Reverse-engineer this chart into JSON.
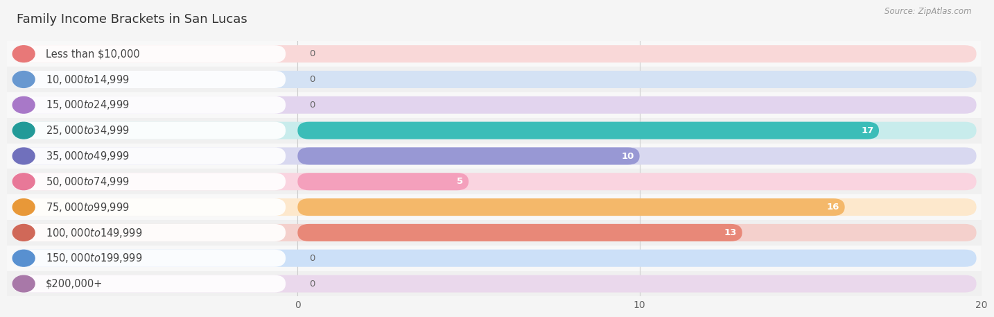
{
  "title": "Family Income Brackets in San Lucas",
  "source": "Source: ZipAtlas.com",
  "categories": [
    "Less than $10,000",
    "$10,000 to $14,999",
    "$15,000 to $24,999",
    "$25,000 to $34,999",
    "$35,000 to $49,999",
    "$50,000 to $74,999",
    "$75,000 to $99,999",
    "$100,000 to $149,999",
    "$150,000 to $199,999",
    "$200,000+"
  ],
  "values": [
    0,
    0,
    0,
    17,
    10,
    5,
    16,
    13,
    0,
    0
  ],
  "bar_colors": [
    "#F2AAAA",
    "#A8C0E8",
    "#C8AADC",
    "#3BBDB8",
    "#9898D4",
    "#F4A0BC",
    "#F4B86A",
    "#E88878",
    "#88B4E8",
    "#C8A8CC"
  ],
  "bar_bg_colors": [
    "#F9D8D8",
    "#D4E2F4",
    "#E2D4EE",
    "#C8ECEC",
    "#D8D8F0",
    "#FAD4E0",
    "#FDE8CC",
    "#F4D0CC",
    "#CCE0F8",
    "#EAD8EC"
  ],
  "dot_colors": [
    "#E87878",
    "#6898D0",
    "#A878C8",
    "#229A98",
    "#7070BC",
    "#E87898",
    "#E89838",
    "#D06858",
    "#5890D0",
    "#A878A8"
  ],
  "row_colors": [
    "#f8f8f8",
    "#f0f0f0"
  ],
  "xlim": [
    0,
    20
  ],
  "xticks": [
    0,
    10,
    20
  ],
  "background_color": "#f5f5f5",
  "title_fontsize": 13,
  "label_fontsize": 10.5,
  "value_fontsize": 9.5
}
